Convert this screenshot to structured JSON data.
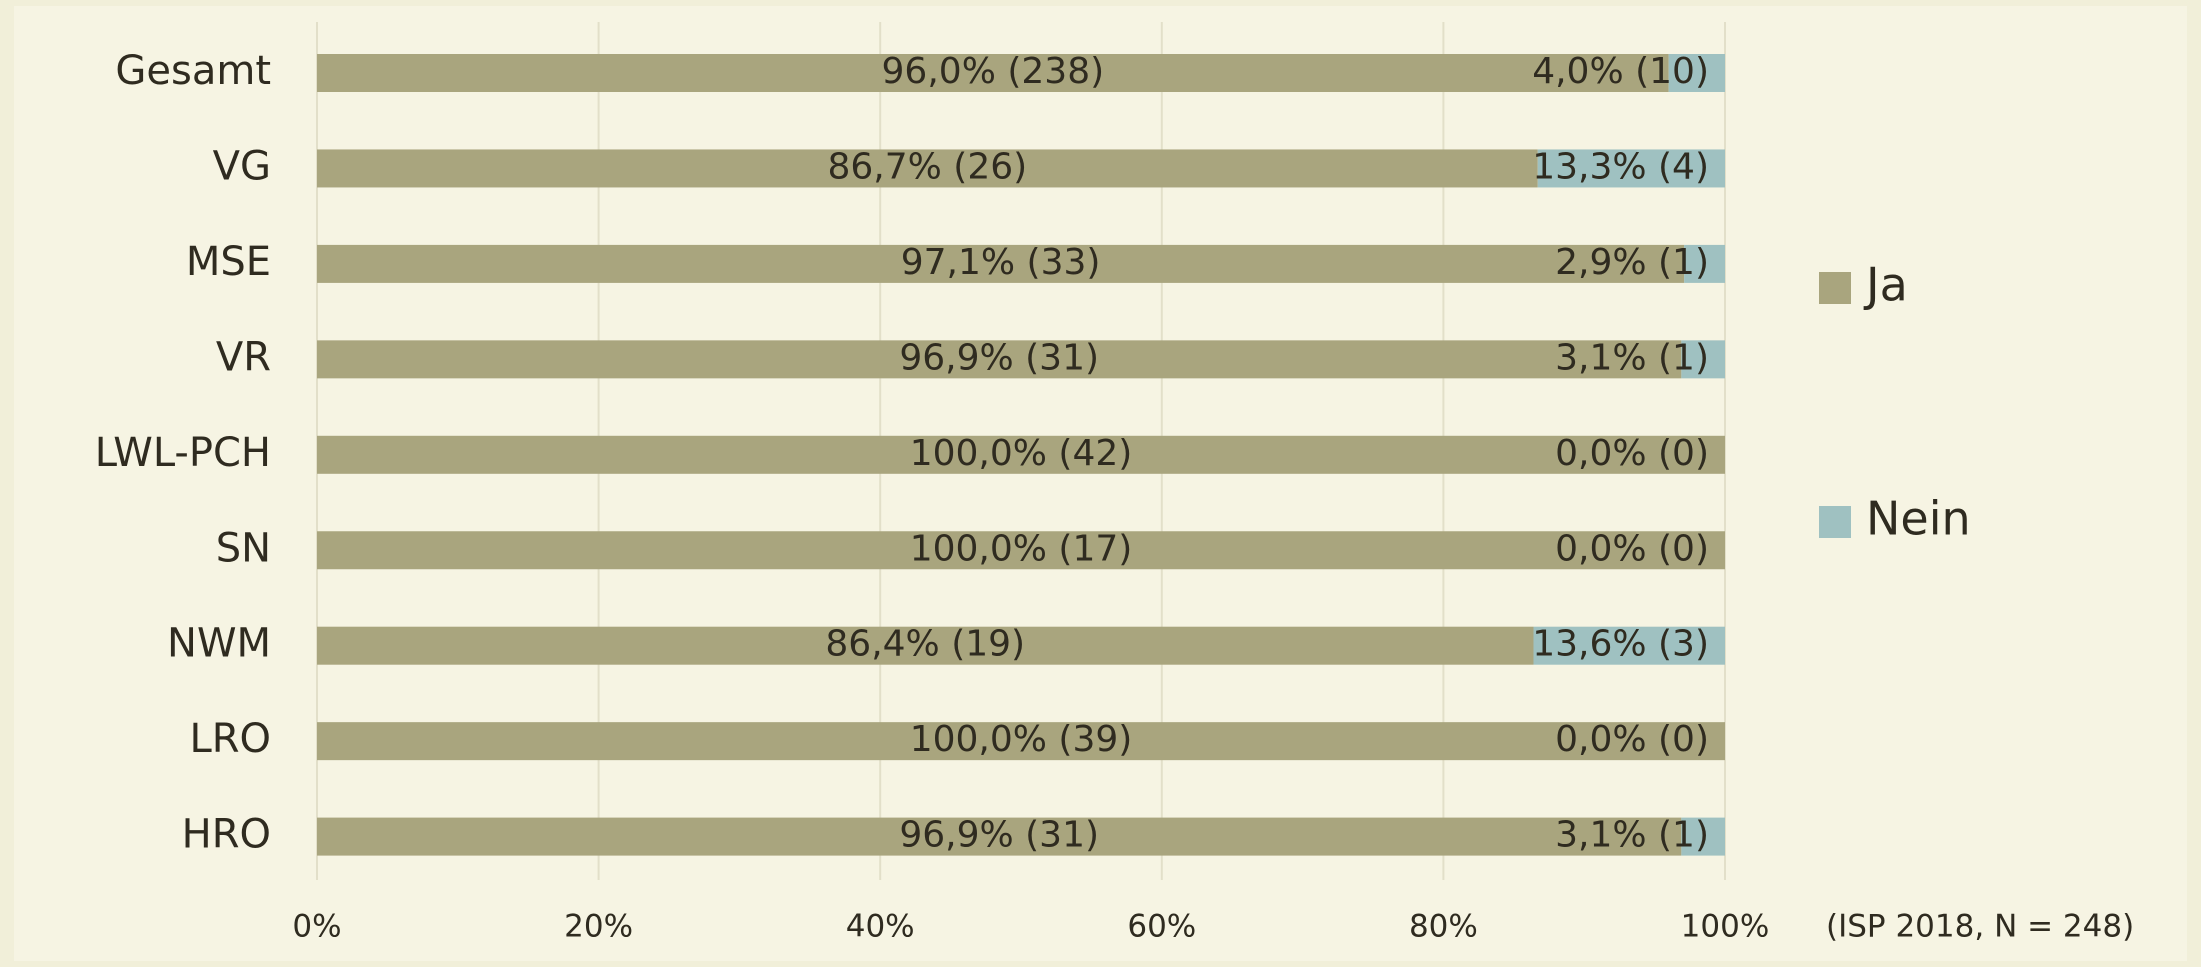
{
  "chart_data": {
    "type": "bar",
    "orientation": "horizontal",
    "stacked": true,
    "categories": [
      "Gesamt",
      "VG",
      "MSE",
      "VR",
      "LWL-PCH",
      "SN",
      "NWM",
      "LRO",
      "HRO"
    ],
    "series": [
      {
        "name": "Ja",
        "color": "#a9a57e",
        "values": [
          96.0,
          86.7,
          97.1,
          96.9,
          100.0,
          100.0,
          86.4,
          100.0,
          96.9
        ],
        "value_labels": [
          "96,0% (238)",
          "86,7% (26)",
          "97,1% (33)",
          "96,9% (31)",
          "100,0% (42)",
          "100,0% (17)",
          "86,4% (19)",
          "100,0% (39)",
          "96,9% (31)"
        ]
      },
      {
        "name": "Nein",
        "color": "#9fc1c1",
        "values": [
          4.0,
          13.3,
          2.9,
          3.1,
          0.0,
          0.0,
          13.6,
          0.0,
          3.1
        ],
        "value_labels": [
          "4,0% (10)",
          "13,3% (4)",
          "2,9% (1)",
          "3,1% (1)",
          "0,0% (0)",
          "0,0% (0)",
          "13,6% (3)",
          "0,0% (0)",
          "3,1% (1)"
        ]
      }
    ],
    "xlim": [
      0,
      100
    ],
    "xticks": [
      {
        "value": 0,
        "label": "0%"
      },
      {
        "value": 20,
        "label": "20%"
      },
      {
        "value": 40,
        "label": "40%"
      },
      {
        "value": 60,
        "label": "60%"
      },
      {
        "value": 80,
        "label": "80%"
      },
      {
        "value": 100,
        "label": "100%"
      }
    ],
    "grid": true,
    "legend": "right",
    "annotation": "(ISP 2018, N = 248)"
  }
}
